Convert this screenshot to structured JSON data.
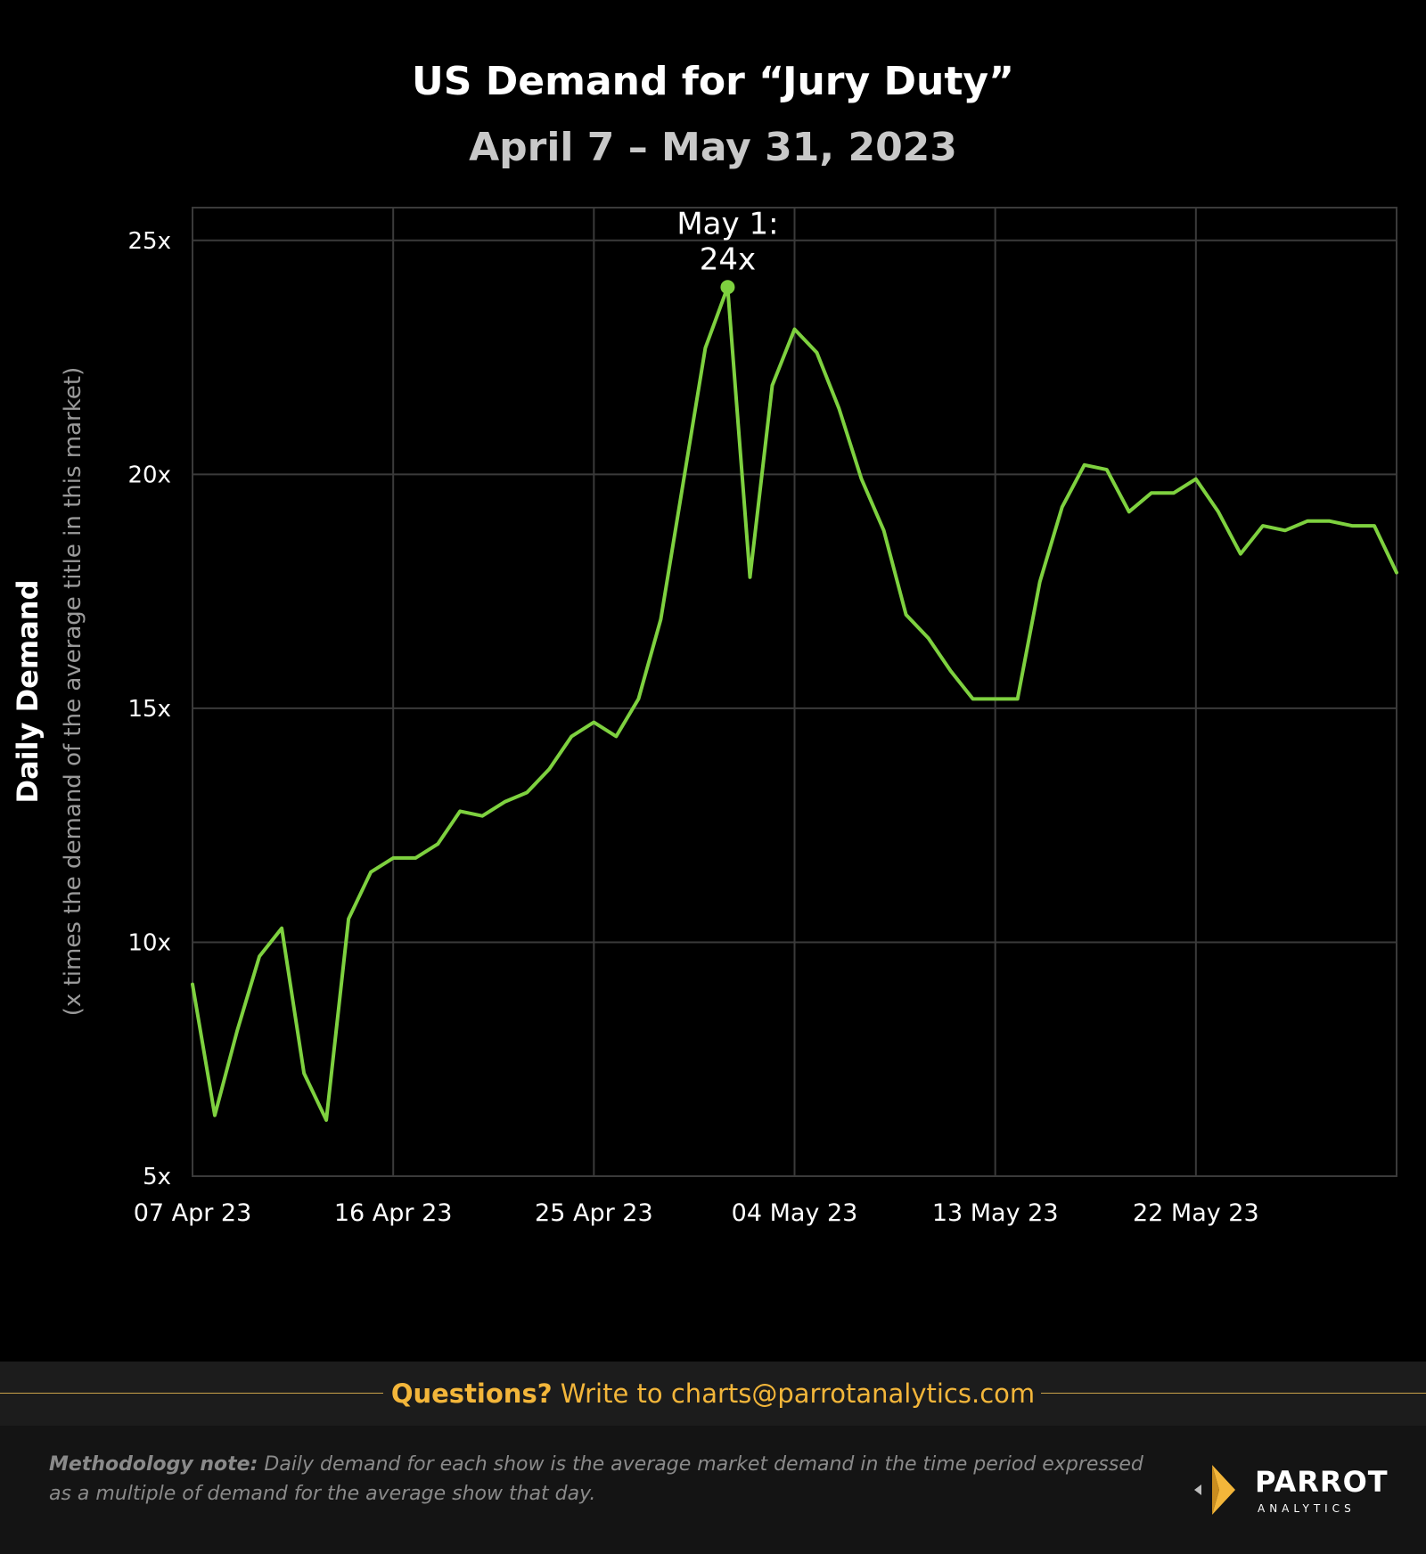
{
  "header": {
    "title": "US Demand for “Jury Duty”",
    "subtitle": "April 7 – May 31, 2023"
  },
  "chart_data": {
    "type": "line",
    "title": "US Demand for “Jury Duty”",
    "subtitle": "April 7 – May 31, 2023",
    "ylabel": "Daily Demand",
    "ylabel_sub": "(x times the demand of the average title in this market)",
    "xlabel": "",
    "ylim": [
      5,
      25.7
    ],
    "yticks": [
      5,
      10,
      15,
      20,
      25
    ],
    "ytick_labels": [
      "5x",
      "10x",
      "15x",
      "20x",
      "25x"
    ],
    "xtick_labels": [
      "07 Apr 23",
      "16 Apr 23",
      "25 Apr 23",
      "04 May 23",
      "13 May 23",
      "22 May 23"
    ],
    "grid": true,
    "line_color": "#7ed13f",
    "series": [
      {
        "x": [
          "2023-04-07",
          "2023-04-08",
          "2023-04-09",
          "2023-04-10",
          "2023-04-11",
          "2023-04-12",
          "2023-04-13",
          "2023-04-14",
          "2023-04-15",
          "2023-04-16",
          "2023-04-17",
          "2023-04-18",
          "2023-04-19",
          "2023-04-20",
          "2023-04-21",
          "2023-04-22",
          "2023-04-23",
          "2023-04-24",
          "2023-04-25",
          "2023-04-26",
          "2023-04-27",
          "2023-04-28",
          "2023-04-29",
          "2023-04-30",
          "2023-05-01",
          "2023-05-02",
          "2023-05-03",
          "2023-05-04",
          "2023-05-05",
          "2023-05-06",
          "2023-05-07",
          "2023-05-08",
          "2023-05-09",
          "2023-05-10",
          "2023-05-11",
          "2023-05-12",
          "2023-05-13",
          "2023-05-14",
          "2023-05-15",
          "2023-05-16",
          "2023-05-17",
          "2023-05-18",
          "2023-05-19",
          "2023-05-20",
          "2023-05-21",
          "2023-05-22",
          "2023-05-23",
          "2023-05-24",
          "2023-05-25",
          "2023-05-26",
          "2023-05-27",
          "2023-05-28",
          "2023-05-29",
          "2023-05-30",
          "2023-05-31"
        ],
        "values": [
          9.1,
          6.3,
          8.1,
          9.7,
          10.3,
          7.2,
          6.2,
          10.5,
          11.5,
          11.8,
          11.8,
          12.1,
          12.8,
          12.7,
          13.0,
          13.2,
          13.7,
          14.4,
          14.7,
          14.4,
          15.2,
          16.9,
          19.8,
          22.7,
          24.0,
          17.8,
          21.9,
          23.1,
          22.6,
          21.4,
          19.9,
          18.8,
          17.0,
          16.5,
          15.8,
          15.2,
          15.2,
          15.2,
          17.7,
          19.3,
          20.2,
          20.1,
          19.2,
          19.6,
          19.6,
          19.9,
          19.2,
          18.3,
          18.9,
          18.8,
          19.0,
          19.0,
          18.9,
          18.9,
          17.9
        ]
      }
    ],
    "annotation": {
      "date": "2023-05-01",
      "value": 24.0,
      "text_line1": "May 1:",
      "text_line2": "24x"
    }
  },
  "contact": {
    "question": "Questions?",
    "text": "Write to charts@parrotanalytics.com"
  },
  "footer": {
    "method_label": "Methodology note:",
    "method_text": "Daily demand for each show is the average market demand in the time period expressed as a multiple of demand for the average show that day.",
    "logo_word": "PARROT",
    "logo_sub": "ANALYTICS"
  }
}
